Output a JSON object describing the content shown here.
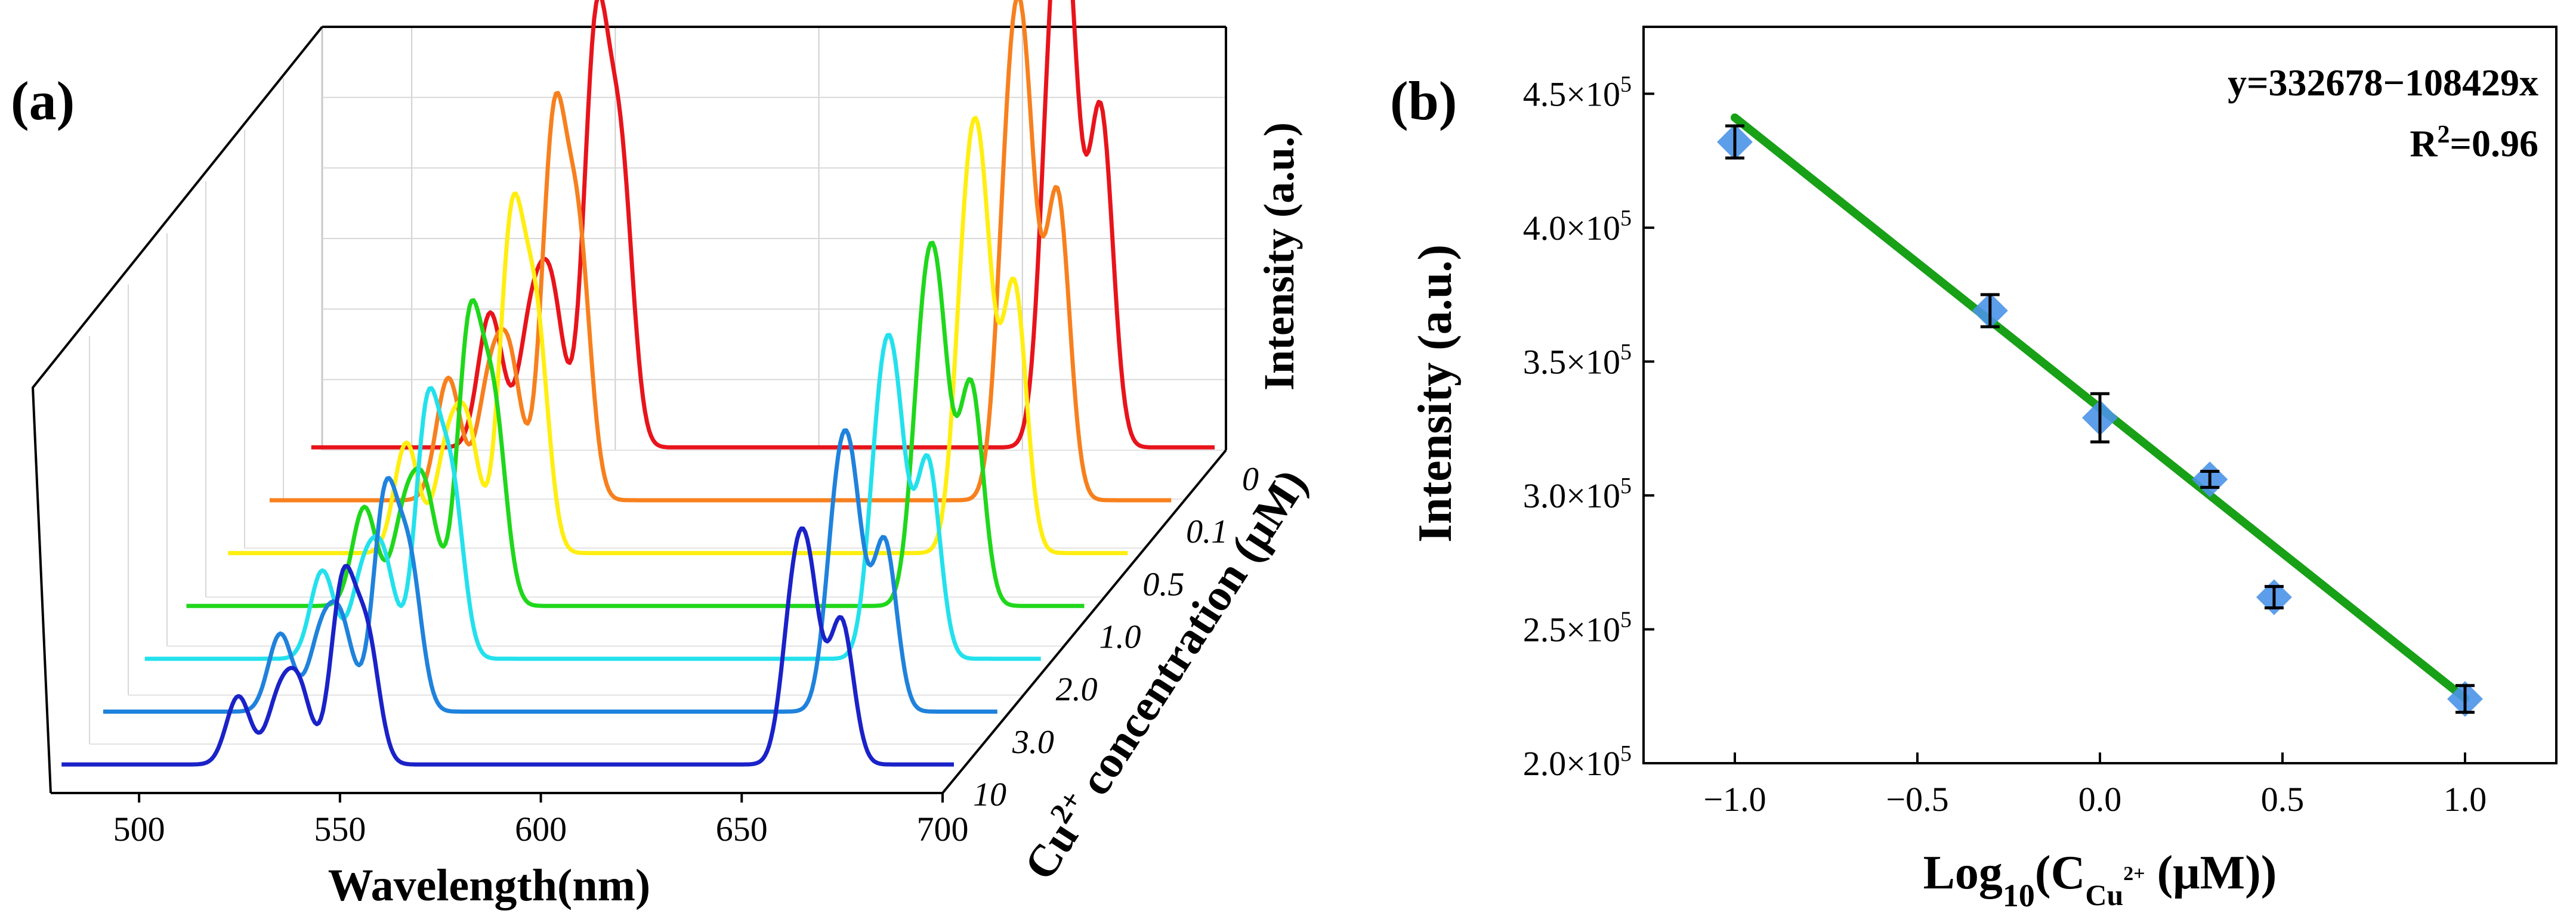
{
  "chart_data": [
    {
      "panel_label": "(a)",
      "type": "line",
      "subtype": "3d-waterfall",
      "title": "",
      "xlabel": "Wavelength(nm)",
      "ylabel": "Intensity (a.u.)",
      "zlabel_base": "Cu",
      "zlabel_sup": "2+",
      "zlabel_rest": " concentration (μM)",
      "xlim": [
        478,
        700
      ],
      "x_ticks": [
        "500",
        "550",
        "600",
        "650",
        "700"
      ],
      "x_tick_values": [
        500,
        550,
        600,
        650,
        700
      ],
      "grid": true,
      "series": [
        {
          "name": "0",
          "color": "#e8141b",
          "peaks": [
            [
              522,
              0.33
            ],
            [
              532,
              0.29
            ],
            [
              537,
              0.36
            ],
            [
              548,
              1.0
            ],
            [
              554,
              0.68
            ],
            [
              660,
              0.8
            ],
            [
              664,
              0.93
            ],
            [
              672,
              0.82
            ]
          ]
        },
        {
          "name": "0.1",
          "color": "#f7801e",
          "peaks": [
            [
              522,
              0.31
            ],
            [
              532,
              0.27
            ],
            [
              537,
              0.34
            ],
            [
              548,
              0.93
            ],
            [
              554,
              0.64
            ],
            [
              660,
              0.74
            ],
            [
              664,
              0.86
            ],
            [
              672,
              0.77
            ]
          ]
        },
        {
          "name": "0.5",
          "color": "#ffee10",
          "peaks": [
            [
              522,
              0.29
            ],
            [
              532,
              0.25
            ],
            [
              537,
              0.31
            ],
            [
              548,
              0.85
            ],
            [
              554,
              0.59
            ],
            [
              660,
              0.66
            ],
            [
              664,
              0.77
            ],
            [
              672,
              0.7
            ]
          ]
        },
        {
          "name": "1.0",
          "color": "#1fd71b",
          "peaks": [
            [
              522,
              0.27
            ],
            [
              532,
              0.24
            ],
            [
              537,
              0.29
            ],
            [
              548,
              0.75
            ],
            [
              554,
              0.52
            ],
            [
              660,
              0.58
            ],
            [
              664,
              0.66
            ],
            [
              672,
              0.6
            ]
          ]
        },
        {
          "name": "2.0",
          "color": "#23e1ec",
          "peaks": [
            [
              522,
              0.25
            ],
            [
              532,
              0.22
            ],
            [
              537,
              0.27
            ],
            [
              548,
              0.69
            ],
            [
              554,
              0.48
            ],
            [
              660,
              0.54
            ],
            [
              664,
              0.61
            ],
            [
              672,
              0.56
            ]
          ]
        },
        {
          "name": "3.0",
          "color": "#1f82dc",
          "peaks": [
            [
              522,
              0.23
            ],
            [
              532,
              0.21
            ],
            [
              537,
              0.25
            ],
            [
              548,
              0.62
            ],
            [
              554,
              0.43
            ],
            [
              660,
              0.49
            ],
            [
              664,
              0.55
            ],
            [
              672,
              0.5
            ]
          ]
        },
        {
          "name": "10",
          "color": "#1a22c8",
          "peaks": [
            [
              522,
              0.21
            ],
            [
              532,
              0.19
            ],
            [
              537,
              0.23
            ],
            [
              548,
              0.55
            ],
            [
              554,
              0.38
            ],
            [
              660,
              0.43
            ],
            [
              664,
              0.48
            ],
            [
              672,
              0.44
            ]
          ]
        }
      ]
    },
    {
      "panel_label": "(b)",
      "type": "scatter",
      "title": "",
      "xlabel_base": "Log",
      "xlabel_sub1": "10",
      "xlabel_mid": "(C",
      "xlabel_sub2": "Cu",
      "xlabel_sub2_sup": "2+",
      "xlabel_rest": " (μM))",
      "ylabel": "Intensity (a.u.)",
      "xlim": [
        -1.25,
        1.25
      ],
      "ylim": [
        200000,
        475000
      ],
      "x_ticks": [
        "−1.0",
        "−0.5",
        "0.0",
        "0.5",
        "1.0"
      ],
      "x_tick_values": [
        -1.0,
        -0.5,
        0.0,
        0.5,
        1.0
      ],
      "y_ticks_mantissa": [
        "2.0×10",
        "2.5×10",
        "3.0×10",
        "3.5×10",
        "4.0×10",
        "4.5×10"
      ],
      "y_ticks_exp": "5",
      "y_tick_values": [
        200000,
        250000,
        300000,
        350000,
        400000,
        450000
      ],
      "marker_color": "#4a94e8",
      "fit_color": "#18a017",
      "fit": {
        "intercept": 332678,
        "slope": -108429,
        "x_range": [
          -1.0,
          1.0
        ]
      },
      "equation": "y=332678−108429x",
      "r2_base": "R",
      "r2_sup": "2",
      "r2_rest": "=0.96",
      "points": [
        {
          "x": -1.0,
          "y": 432000,
          "err": 6000
        },
        {
          "x": -0.301,
          "y": 369000,
          "err": 6000
        },
        {
          "x": 0.0,
          "y": 329000,
          "err": 9000
        },
        {
          "x": 0.301,
          "y": 306000,
          "err": 3000
        },
        {
          "x": 0.477,
          "y": 262000,
          "err": 4000
        },
        {
          "x": 1.0,
          "y": 224000,
          "err": 5000
        }
      ]
    }
  ]
}
